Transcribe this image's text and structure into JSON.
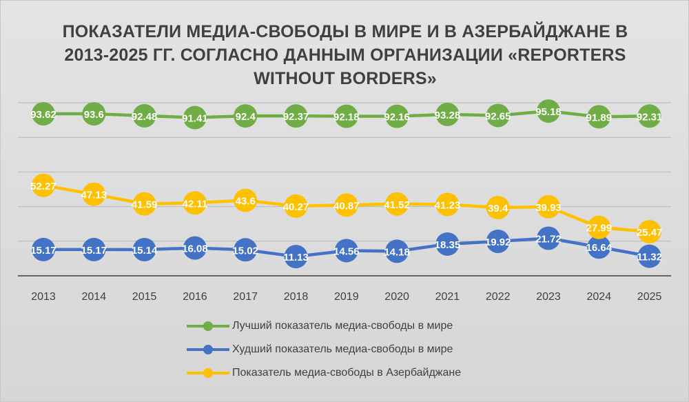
{
  "chart_data": {
    "type": "line",
    "title": "ПОКАЗАТЕЛИ МЕДИА-СВОБОДЫ В МИРЕ И В АЗЕРБАЙДЖАНЕ В 2013-2025 ГГ. СОГЛАСНО ДАННЫМ ОРГАНИЗАЦИИ «REPORTERS WITHOUT BORDERS»",
    "x": [
      "2013",
      "2014",
      "2015",
      "2016",
      "2017",
      "2018",
      "2019",
      "2020",
      "2021",
      "2022",
      "2023",
      "2024",
      "2025"
    ],
    "ylim": [
      0,
      100
    ],
    "grid": true,
    "legend_position": "bottom",
    "series": [
      {
        "name": "Лучший показатель медиа-свободы в мире",
        "color": "#70ad47",
        "values": [
          93.62,
          93.6,
          92.48,
          91.41,
          92.4,
          92.37,
          92.18,
          92.16,
          93.28,
          92.65,
          95.18,
          91.89,
          92.31
        ]
      },
      {
        "name": "Худший показатель медиа-свободы в мире",
        "color": "#4472c4",
        "values": [
          15.17,
          15.17,
          15.14,
          16.08,
          15.02,
          11.13,
          14.56,
          14.18,
          18.35,
          19.92,
          21.72,
          16.64,
          11.32
        ]
      },
      {
        "name": "Показатель медиа-свободы в Азербайджане",
        "color": "#ffc000",
        "values": [
          52.27,
          47.13,
          41.59,
          42.11,
          43.6,
          40.27,
          40.87,
          41.52,
          41.23,
          39.4,
          39.93,
          27.99,
          25.47
        ]
      }
    ]
  }
}
